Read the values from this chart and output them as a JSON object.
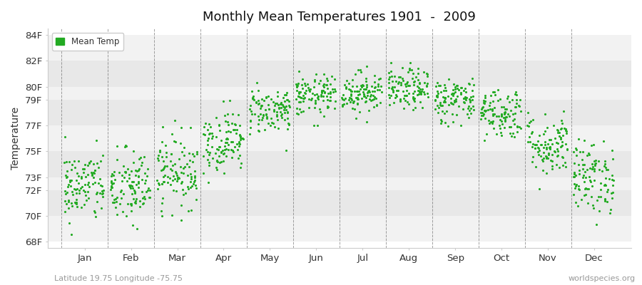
{
  "title": "Monthly Mean Temperatures 1901  -  2009",
  "ylabel": "Temperature",
  "ytick_values": [
    68,
    70,
    72,
    73,
    75,
    77,
    79,
    80,
    82,
    84
  ],
  "ytick_labels": [
    "68F",
    "70F",
    "72F",
    "73F",
    "75F",
    "77F",
    "79F",
    "80F",
    "82F",
    "84F"
  ],
  "ylim": [
    67.5,
    84.5
  ],
  "months": [
    "Jan",
    "Feb",
    "Mar",
    "Apr",
    "May",
    "Jun",
    "Jul",
    "Aug",
    "Sep",
    "Oct",
    "Nov",
    "Dec"
  ],
  "dot_color": "#22aa22",
  "legend_label": "Mean Temp",
  "footer_left": "Latitude 19.75 Longitude -75.75",
  "footer_right": "worldspecies.org",
  "background_color": "#ffffff",
  "band_colors": [
    "#f2f2f2",
    "#e8e8e8"
  ],
  "grid_color": "#555555",
  "month_means": [
    72.3,
    72.2,
    73.5,
    75.8,
    78.2,
    79.3,
    79.6,
    79.8,
    79.0,
    78.0,
    75.5,
    73.0
  ],
  "month_stds": [
    1.4,
    1.5,
    1.4,
    1.2,
    0.9,
    0.8,
    0.8,
    0.8,
    0.9,
    1.0,
    1.2,
    1.4
  ],
  "n_years": 109,
  "random_seed": 42
}
